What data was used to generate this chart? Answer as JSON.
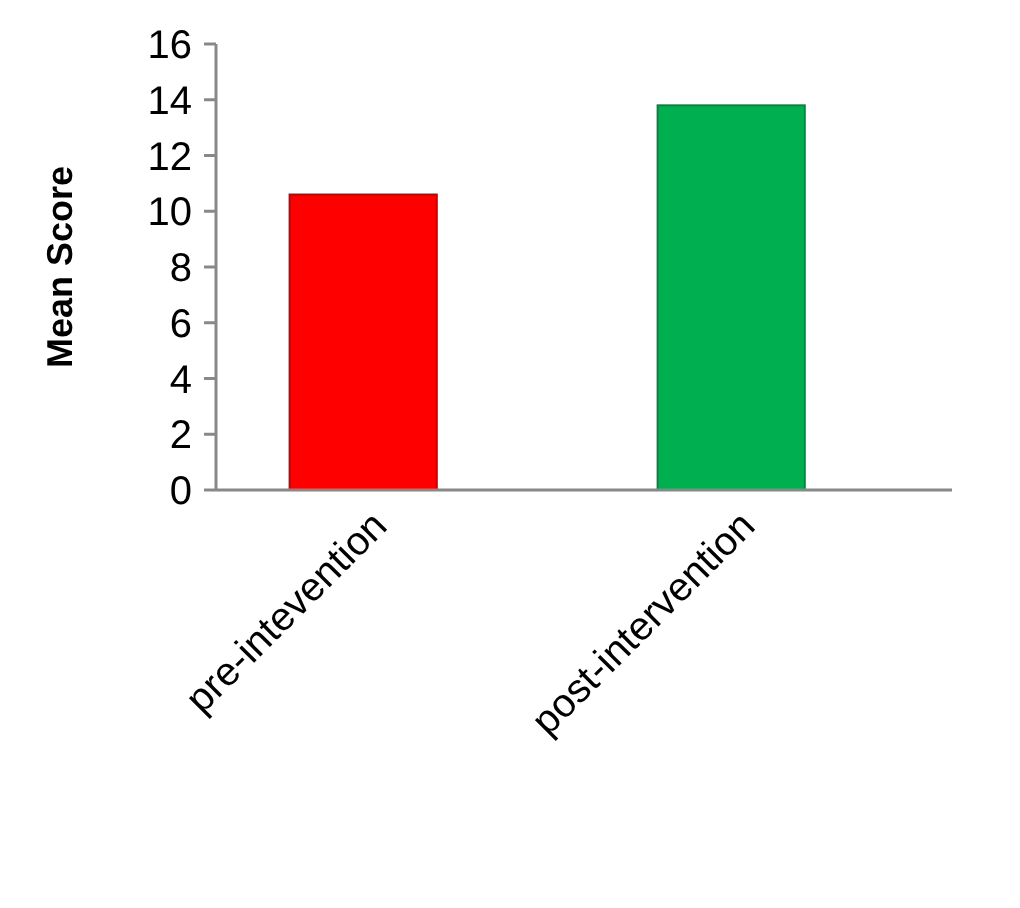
{
  "chart_data": {
    "type": "bar",
    "ylabel": "Mean Score",
    "categories": [
      "pre-intevention",
      "post-intervention"
    ],
    "values": [
      10.6,
      13.8
    ],
    "colors": [
      "#ff0000",
      "#00b050"
    ],
    "ylim": [
      0,
      16
    ],
    "yticks": [
      0,
      2,
      4,
      6,
      8,
      10,
      12,
      14,
      16
    ],
    "grid": false
  }
}
